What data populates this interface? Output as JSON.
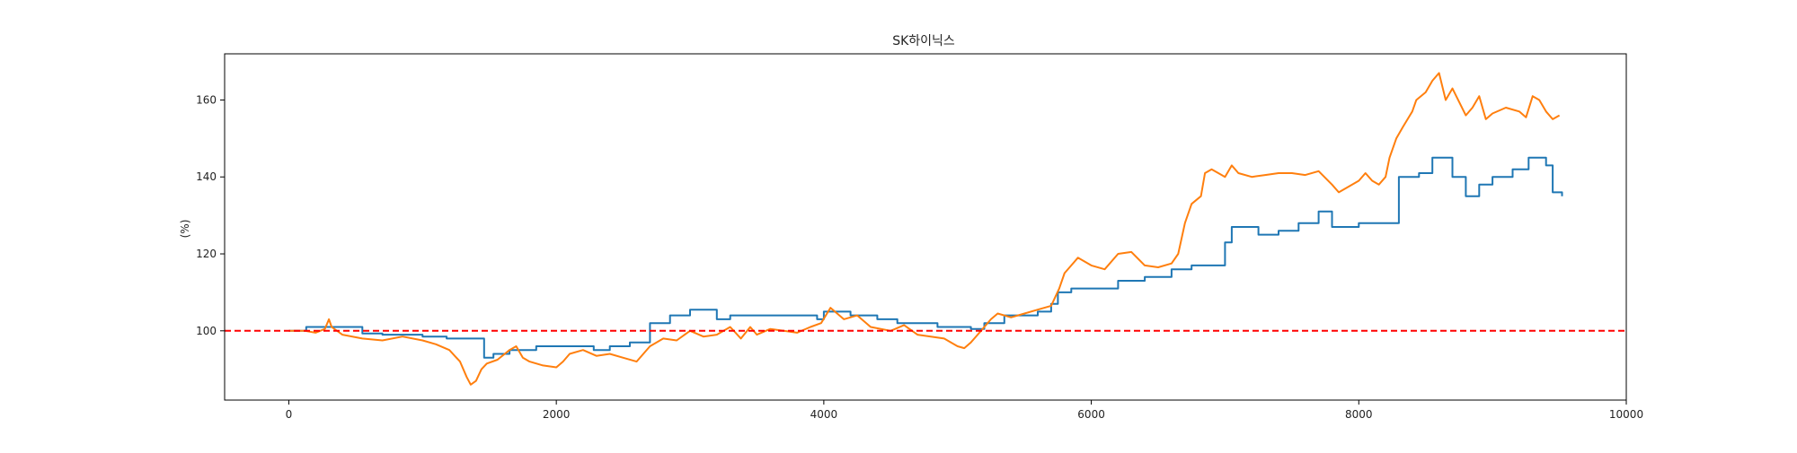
{
  "chart_data": {
    "type": "line",
    "title": "SK하이닉스",
    "xlabel": "",
    "ylabel": "(%)",
    "xlim": [
      -480,
      10000
    ],
    "ylim": [
      82,
      172
    ],
    "xticks": [
      0,
      2000,
      4000,
      6000,
      8000,
      10000
    ],
    "yticks": [
      100,
      120,
      140,
      160
    ],
    "grid": false,
    "legend": "none",
    "reference_line": {
      "y": 100,
      "color": "#ff0000",
      "style": "dashed"
    },
    "series": [
      {
        "color": "#1f77b4",
        "style": "step",
        "points": [
          [
            0,
            100
          ],
          [
            130,
            100
          ],
          [
            130,
            101
          ],
          [
            550,
            101
          ],
          [
            550,
            99.3
          ],
          [
            700,
            99.3
          ],
          [
            700,
            99
          ],
          [
            1000,
            99
          ],
          [
            1000,
            98.5
          ],
          [
            1180,
            98.5
          ],
          [
            1180,
            98
          ],
          [
            1460,
            98
          ],
          [
            1460,
            93
          ],
          [
            1530,
            93
          ],
          [
            1530,
            94
          ],
          [
            1650,
            94
          ],
          [
            1650,
            95
          ],
          [
            1850,
            95
          ],
          [
            1850,
            96
          ],
          [
            2280,
            96
          ],
          [
            2280,
            95
          ],
          [
            2400,
            95
          ],
          [
            2400,
            96
          ],
          [
            2550,
            96
          ],
          [
            2550,
            97
          ],
          [
            2700,
            97
          ],
          [
            2700,
            102
          ],
          [
            2850,
            102
          ],
          [
            2850,
            104
          ],
          [
            3000,
            104
          ],
          [
            3000,
            105.5
          ],
          [
            3200,
            105.5
          ],
          [
            3200,
            103
          ],
          [
            3300,
            103
          ],
          [
            3300,
            104
          ],
          [
            3950,
            104
          ],
          [
            3950,
            103
          ],
          [
            4000,
            103
          ],
          [
            4000,
            105
          ],
          [
            4200,
            105
          ],
          [
            4200,
            104
          ],
          [
            4400,
            104
          ],
          [
            4400,
            103
          ],
          [
            4550,
            103
          ],
          [
            4550,
            102
          ],
          [
            4850,
            102
          ],
          [
            4850,
            101
          ],
          [
            5100,
            101
          ],
          [
            5100,
            100.5
          ],
          [
            5200,
            100.5
          ],
          [
            5200,
            102
          ],
          [
            5350,
            102
          ],
          [
            5350,
            104
          ],
          [
            5600,
            104
          ],
          [
            5600,
            105
          ],
          [
            5700,
            105
          ],
          [
            5700,
            107
          ],
          [
            5750,
            107
          ],
          [
            5750,
            110
          ],
          [
            5850,
            110
          ],
          [
            5850,
            111
          ],
          [
            6200,
            111
          ],
          [
            6200,
            113
          ],
          [
            6400,
            113
          ],
          [
            6400,
            114
          ],
          [
            6600,
            114
          ],
          [
            6600,
            116
          ],
          [
            6750,
            116
          ],
          [
            6750,
            117
          ],
          [
            7000,
            117
          ],
          [
            7000,
            123
          ],
          [
            7050,
            123
          ],
          [
            7050,
            127
          ],
          [
            7250,
            127
          ],
          [
            7250,
            125
          ],
          [
            7400,
            125
          ],
          [
            7400,
            126
          ],
          [
            7550,
            126
          ],
          [
            7550,
            128
          ],
          [
            7700,
            128
          ],
          [
            7700,
            131
          ],
          [
            7800,
            131
          ],
          [
            7800,
            127
          ],
          [
            8000,
            127
          ],
          [
            8000,
            128
          ],
          [
            8200,
            128
          ],
          [
            8200,
            128
          ],
          [
            8300,
            128
          ],
          [
            8300,
            140
          ],
          [
            8450,
            140
          ],
          [
            8450,
            141
          ],
          [
            8550,
            141
          ],
          [
            8550,
            145
          ],
          [
            8700,
            145
          ],
          [
            8700,
            140
          ],
          [
            8800,
            140
          ],
          [
            8800,
            135
          ],
          [
            8900,
            135
          ],
          [
            8900,
            138
          ],
          [
            9000,
            138
          ],
          [
            9000,
            140
          ],
          [
            9150,
            140
          ],
          [
            9150,
            142
          ],
          [
            9270,
            142
          ],
          [
            9270,
            145
          ],
          [
            9400,
            145
          ],
          [
            9400,
            143
          ],
          [
            9450,
            143
          ],
          [
            9450,
            136
          ],
          [
            9520,
            136
          ],
          [
            9520,
            135
          ]
        ]
      },
      {
        "color": "#ff7f0e",
        "style": "line",
        "points": [
          [
            0,
            100
          ],
          [
            120,
            100
          ],
          [
            200,
            99.5
          ],
          [
            270,
            100.5
          ],
          [
            300,
            103
          ],
          [
            320,
            101
          ],
          [
            400,
            99
          ],
          [
            550,
            98
          ],
          [
            700,
            97.5
          ],
          [
            850,
            98.5
          ],
          [
            1000,
            97.5
          ],
          [
            1100,
            96.5
          ],
          [
            1200,
            95
          ],
          [
            1280,
            92
          ],
          [
            1330,
            88
          ],
          [
            1360,
            86
          ],
          [
            1400,
            87
          ],
          [
            1440,
            90
          ],
          [
            1480,
            91.5
          ],
          [
            1560,
            92.5
          ],
          [
            1650,
            95
          ],
          [
            1700,
            96
          ],
          [
            1750,
            93
          ],
          [
            1800,
            92
          ],
          [
            1900,
            91
          ],
          [
            2000,
            90.5
          ],
          [
            2050,
            92
          ],
          [
            2100,
            94
          ],
          [
            2200,
            95
          ],
          [
            2300,
            93.5
          ],
          [
            2400,
            94
          ],
          [
            2500,
            93
          ],
          [
            2600,
            92
          ],
          [
            2700,
            96
          ],
          [
            2800,
            98
          ],
          [
            2900,
            97.5
          ],
          [
            3000,
            100
          ],
          [
            3100,
            98.5
          ],
          [
            3200,
            99
          ],
          [
            3300,
            101
          ],
          [
            3380,
            98
          ],
          [
            3450,
            101
          ],
          [
            3500,
            99
          ],
          [
            3600,
            100.5
          ],
          [
            3700,
            100
          ],
          [
            3800,
            99.5
          ],
          [
            3900,
            101
          ],
          [
            3980,
            102
          ],
          [
            4050,
            106
          ],
          [
            4150,
            103
          ],
          [
            4250,
            104
          ],
          [
            4350,
            101
          ],
          [
            4500,
            100
          ],
          [
            4600,
            101.5
          ],
          [
            4700,
            99
          ],
          [
            4800,
            98.5
          ],
          [
            4900,
            98
          ],
          [
            5000,
            96
          ],
          [
            5050,
            95.5
          ],
          [
            5100,
            97
          ],
          [
            5150,
            99
          ],
          [
            5200,
            101
          ],
          [
            5250,
            103
          ],
          [
            5300,
            104.5
          ],
          [
            5400,
            103.5
          ],
          [
            5500,
            104.5
          ],
          [
            5600,
            105.5
          ],
          [
            5700,
            106.5
          ],
          [
            5760,
            111
          ],
          [
            5800,
            115
          ],
          [
            5850,
            117
          ],
          [
            5900,
            119
          ],
          [
            6000,
            117
          ],
          [
            6100,
            116
          ],
          [
            6200,
            120
          ],
          [
            6300,
            120.5
          ],
          [
            6400,
            117
          ],
          [
            6500,
            116.5
          ],
          [
            6600,
            117.5
          ],
          [
            6650,
            120
          ],
          [
            6700,
            128
          ],
          [
            6750,
            133
          ],
          [
            6820,
            135
          ],
          [
            6850,
            141
          ],
          [
            6900,
            142
          ],
          [
            6950,
            141
          ],
          [
            7000,
            140
          ],
          [
            7050,
            143
          ],
          [
            7100,
            141
          ],
          [
            7200,
            140
          ],
          [
            7300,
            140.5
          ],
          [
            7400,
            141
          ],
          [
            7500,
            141
          ],
          [
            7600,
            140.5
          ],
          [
            7700,
            141.5
          ],
          [
            7800,
            138
          ],
          [
            7850,
            136
          ],
          [
            7900,
            137
          ],
          [
            8000,
            139
          ],
          [
            8050,
            141
          ],
          [
            8100,
            139
          ],
          [
            8150,
            138
          ],
          [
            8200,
            140
          ],
          [
            8230,
            145
          ],
          [
            8280,
            150
          ],
          [
            8330,
            153
          ],
          [
            8400,
            157
          ],
          [
            8430,
            160
          ],
          [
            8500,
            162
          ],
          [
            8550,
            165
          ],
          [
            8600,
            167
          ],
          [
            8650,
            160
          ],
          [
            8700,
            163
          ],
          [
            8800,
            156
          ],
          [
            8850,
            158
          ],
          [
            8900,
            161
          ],
          [
            8950,
            155
          ],
          [
            9000,
            156.5
          ],
          [
            9100,
            158
          ],
          [
            9200,
            157
          ],
          [
            9250,
            155.5
          ],
          [
            9300,
            161
          ],
          [
            9350,
            160
          ],
          [
            9400,
            157
          ],
          [
            9450,
            155
          ],
          [
            9500,
            156
          ]
        ]
      }
    ]
  }
}
